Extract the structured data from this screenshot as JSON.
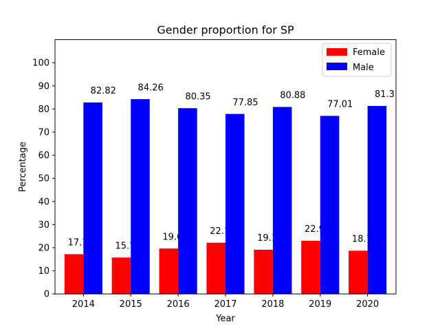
{
  "chart_data": {
    "type": "bar",
    "title": "Gender proportion for SP",
    "xlabel": "Year",
    "ylabel": "Percentage",
    "categories": [
      "2014",
      "2015",
      "2016",
      "2017",
      "2018",
      "2019",
      "2020"
    ],
    "series": [
      {
        "name": "Female",
        "color": "#ff0000",
        "values": [
          17.18,
          15.74,
          19.65,
          22.15,
          19.12,
          22.99,
          18.7
        ],
        "labels": [
          "17.18",
          "15.74",
          "19.65",
          "22.15",
          "19.12",
          "22.99",
          "18.7"
        ]
      },
      {
        "name": "Male",
        "color": "#0000ff",
        "values": [
          82.82,
          84.26,
          80.35,
          77.85,
          80.88,
          77.01,
          81.3
        ],
        "labels": [
          "82.82",
          "84.26",
          "80.35",
          "77.85",
          "80.88",
          "77.01",
          "81.3"
        ]
      }
    ],
    "ylim": [
      0,
      110
    ],
    "yticks": [
      0,
      10,
      20,
      30,
      40,
      50,
      60,
      70,
      80,
      90,
      100
    ],
    "grid": false,
    "legend_position": "top-right"
  }
}
